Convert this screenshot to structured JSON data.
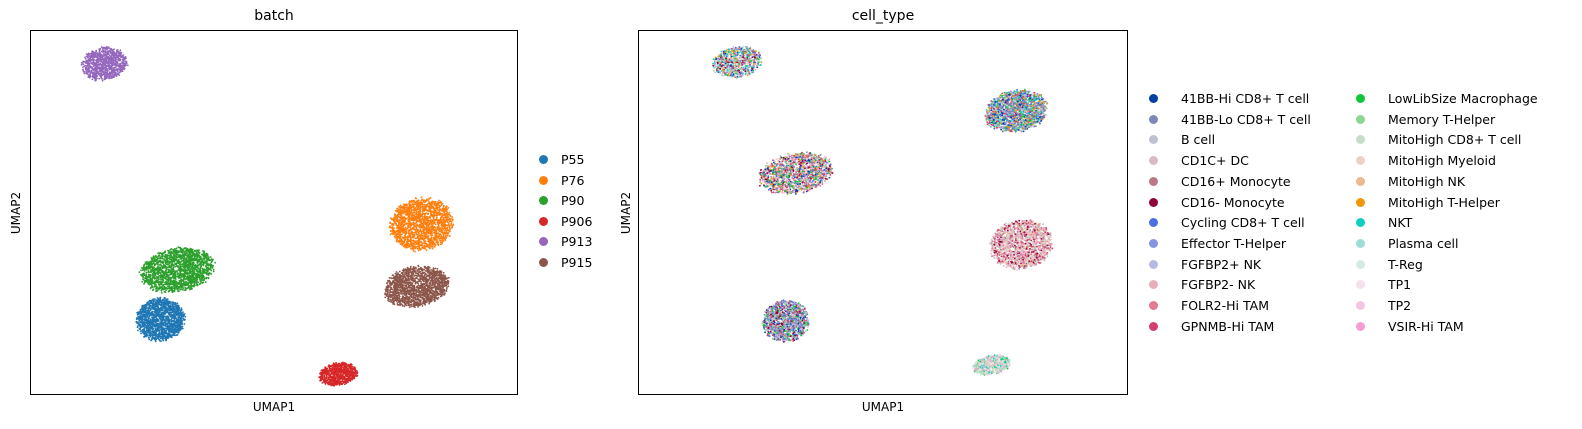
{
  "chart_data": [
    {
      "type": "scatter",
      "title": "batch",
      "xlabel": "UMAP1",
      "ylabel": "UMAP2",
      "grid": false,
      "legend_placement": "right",
      "series": [
        {
          "name": "P55",
          "color": "#1f77b4",
          "cluster": {
            "cx": 0.265,
            "cy": 0.21,
            "rx": 0.105,
            "ry": 0.125,
            "density": 1500
          }
        },
        {
          "name": "P76",
          "color": "#ff7f0e",
          "cluster": {
            "cx": 0.8,
            "cy": 0.47,
            "rx": 0.135,
            "ry": 0.15,
            "density": 1800
          }
        },
        {
          "name": "P90",
          "color": "#2ca02c",
          "cluster": {
            "cx": 0.3,
            "cy": 0.345,
            "rx": 0.16,
            "ry": 0.125,
            "density": 1800
          }
        },
        {
          "name": "P906",
          "color": "#d62728",
          "cluster": {
            "cx": 0.63,
            "cy": 0.06,
            "rx": 0.085,
            "ry": 0.065,
            "density": 700
          }
        },
        {
          "name": "P913",
          "color": "#9467bd",
          "cluster": {
            "cx": 0.15,
            "cy": 0.91,
            "rx": 0.1,
            "ry": 0.095,
            "density": 900
          }
        },
        {
          "name": "P915",
          "color": "#8c564b",
          "cluster": {
            "cx": 0.79,
            "cy": 0.3,
            "rx": 0.14,
            "ry": 0.115,
            "density": 1600
          }
        }
      ]
    },
    {
      "type": "scatter",
      "title": "cell_type",
      "xlabel": "UMAP1",
      "ylabel": "UMAP2",
      "grid": false,
      "legend_placement": "right",
      "series": [
        {
          "name": "41BB-Hi CD8+ T cell",
          "color": "#023fa5"
        },
        {
          "name": "41BB-Lo CD8+ T cell",
          "color": "#7d87b9"
        },
        {
          "name": "B cell",
          "color": "#bec1d4"
        },
        {
          "name": "CD1C+ DC",
          "color": "#d6bcc0"
        },
        {
          "name": "CD16+ Monocyte",
          "color": "#bb7784"
        },
        {
          "name": "CD16- Monocyte",
          "color": "#8e063b"
        },
        {
          "name": "Cycling CD8+ T cell",
          "color": "#4a6fe3"
        },
        {
          "name": "Effector T-Helper",
          "color": "#8595e1"
        },
        {
          "name": "FGFBP2+ NK",
          "color": "#b5bbe3"
        },
        {
          "name": "FGFBP2- NK",
          "color": "#e6afb9"
        },
        {
          "name": "FOLR2-Hi TAM",
          "color": "#e07b91"
        },
        {
          "name": "GPNMB-Hi TAM",
          "color": "#d33f6a"
        },
        {
          "name": "LowLibSize Macrophage",
          "color": "#11c638"
        },
        {
          "name": "Memory T-Helper",
          "color": "#8dd593"
        },
        {
          "name": "MitoHigh CD8+ T cell",
          "color": "#c6dec7"
        },
        {
          "name": "MitoHigh Myeloid",
          "color": "#ead3c6"
        },
        {
          "name": "MitoHigh NK",
          "color": "#f0b98d"
        },
        {
          "name": "MitoHigh T-Helper",
          "color": "#ef9708"
        },
        {
          "name": "NKT",
          "color": "#0fcfc0"
        },
        {
          "name": "Plasma cell",
          "color": "#9cded6"
        },
        {
          "name": "T-Reg",
          "color": "#d5eae7"
        },
        {
          "name": "TP1",
          "color": "#f3e1eb"
        },
        {
          "name": "TP2",
          "color": "#f6c4e1"
        },
        {
          "name": "VSIR-Hi TAM",
          "color": "#f79cd4"
        }
      ],
      "clusters": [
        {
          "cx": 0.2,
          "cy": 0.915,
          "rx": 0.105,
          "ry": 0.09,
          "density": 900,
          "mix": [
            0,
            1,
            2,
            3,
            6,
            7,
            8,
            12,
            13,
            17,
            18,
            19,
            20,
            16,
            11,
            5
          ]
        },
        {
          "cx": 0.72,
          "cy": 0.085,
          "rx": 0.08,
          "ry": 0.055,
          "density": 600,
          "mix": [
            21,
            22,
            23,
            12,
            13,
            14,
            15,
            3,
            2,
            18,
            19,
            20
          ]
        },
        {
          "cx": 0.3,
          "cy": 0.205,
          "rx": 0.1,
          "ry": 0.12,
          "density": 1300,
          "mix": [
            0,
            1,
            6,
            7,
            8,
            2,
            4,
            5,
            11,
            12,
            13,
            3
          ]
        },
        {
          "cx": 0.78,
          "cy": 0.415,
          "rx": 0.135,
          "ry": 0.14,
          "density": 1700,
          "mix": [
            3,
            4,
            5,
            10,
            11,
            14,
            15,
            16,
            23,
            2,
            22,
            9
          ]
        },
        {
          "cx": 0.32,
          "cy": 0.61,
          "rx": 0.16,
          "ry": 0.115,
          "density": 1700,
          "mix": [
            21,
            22,
            9,
            3,
            10,
            11,
            0,
            1,
            6,
            12,
            13,
            17,
            4,
            5
          ]
        },
        {
          "cx": 0.77,
          "cy": 0.78,
          "rx": 0.135,
          "ry": 0.12,
          "density": 1700,
          "mix": [
            0,
            1,
            6,
            7,
            8,
            2,
            4,
            11,
            12,
            13,
            18,
            17
          ]
        }
      ]
    }
  ]
}
